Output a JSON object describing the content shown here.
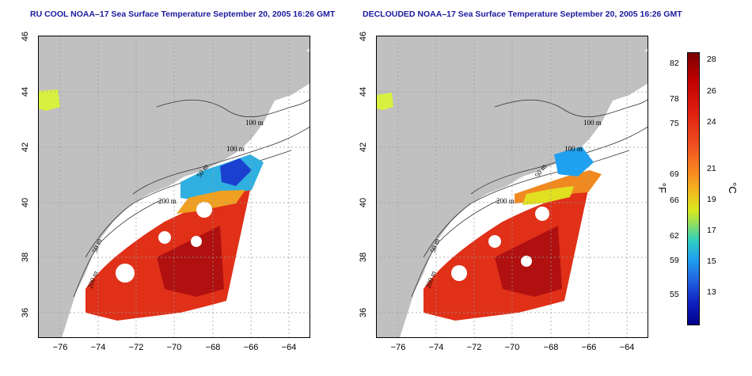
{
  "titles": {
    "left": "RU COOL NOAA–17 Sea Surface Temperature September 20, 2005 16:26 GMT",
    "right": "DECLOUDED NOAA–17 Sea Surface Temperature September 20, 2005 16:26 GMT"
  },
  "axes": {
    "x_ticks": [
      "−76",
      "−74",
      "−72",
      "−70",
      "−68",
      "−66",
      "−64"
    ],
    "y_ticks": [
      "46",
      "44",
      "42",
      "40",
      "38",
      "36"
    ]
  },
  "contour_labels": {
    "m100a": "100 m",
    "m100b": "100 m",
    "m50": "50 m",
    "m200": "200 m",
    "m50b": "50 m",
    "m200b": "200 m"
  },
  "colorbar": {
    "fahrenheit_label": "°F",
    "celsius_label": "°C",
    "fahrenheit_ticks": [
      "82",
      "78",
      "75",
      "69",
      "66",
      "62",
      "59",
      "55"
    ],
    "celsius_ticks": [
      "28",
      "26",
      "24",
      "21",
      "19",
      "17",
      "15",
      "13"
    ],
    "colors": {
      "top": "#7a0000",
      "warm": "#e02010",
      "mid": "#f0c020",
      "cool": "#30d0c0",
      "cold": "#1020c0",
      "bottom": "#00008a"
    }
  },
  "colors": {
    "land": "#c0c0c0",
    "title": "#1a1a9e",
    "grid": "#999999"
  }
}
